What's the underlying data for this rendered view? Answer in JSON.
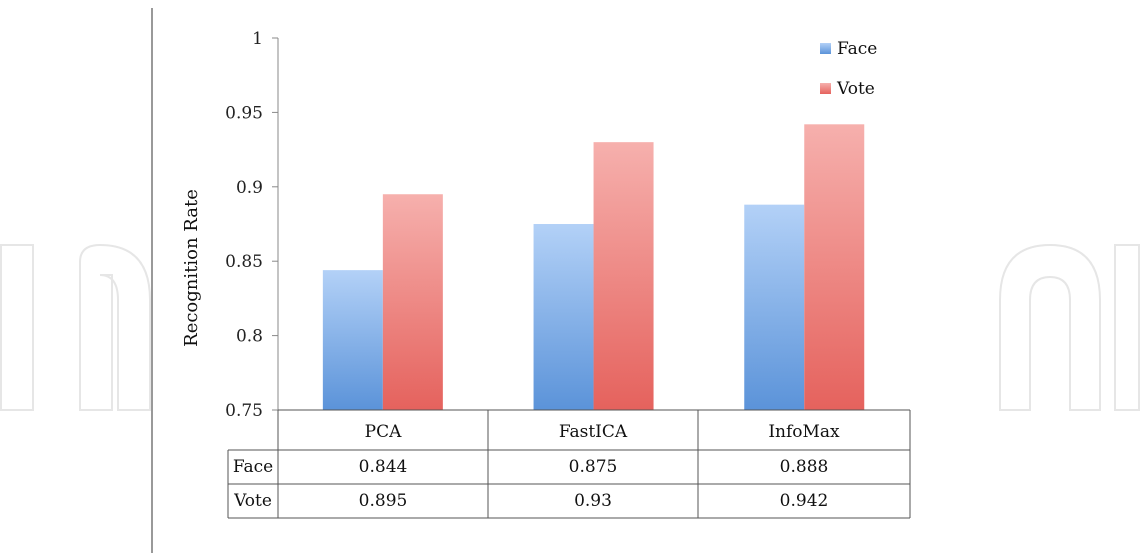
{
  "chart_data": {
    "type": "bar",
    "ylabel": "Recognition Rate",
    "ylim": [
      0.75,
      1
    ],
    "yticks": [
      "0.75",
      "0.8",
      "0.85",
      "0.9",
      "0.95",
      "1"
    ],
    "categories": [
      "PCA",
      "FastICA",
      "InfoMax"
    ],
    "series": [
      {
        "name": "Face",
        "values": [
          0.844,
          0.875,
          0.888
        ],
        "labels": [
          "0.844",
          "0.875",
          "0.888"
        ],
        "color": "#5b93d9"
      },
      {
        "name": "Vote",
        "values": [
          0.895,
          0.93,
          0.942
        ],
        "labels": [
          "0.895",
          "0.93",
          "0.942"
        ],
        "color": "#e5625d"
      }
    ],
    "legend": "top-right",
    "grid": false,
    "data_table": true
  }
}
